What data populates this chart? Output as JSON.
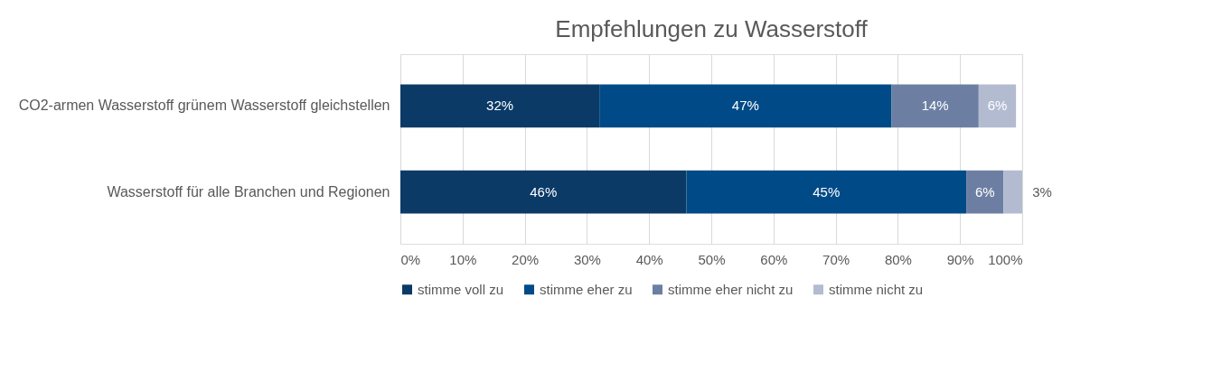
{
  "chart_data": {
    "type": "bar",
    "orientation": "horizontal",
    "stacked": true,
    "title": "Empfehlungen zu Wasserstoff",
    "categories": [
      "CO2-armen Wasserstoff grünem Wasserstoff gleichstellen",
      "Wasserstoff für alle Branchen und Regionen"
    ],
    "series": [
      {
        "name": "stimme voll zu",
        "color": "#0b3a66",
        "values": [
          32,
          46
        ],
        "value_labels": [
          "32%",
          "46%"
        ]
      },
      {
        "name": "stimme eher zu",
        "color": "#004b87",
        "values": [
          47,
          45
        ],
        "value_labels": [
          "47%",
          "45%"
        ]
      },
      {
        "name": "stimme eher nicht zu",
        "color": "#6c7fa3",
        "values": [
          14,
          6
        ],
        "value_labels": [
          "14%",
          "6%"
        ]
      },
      {
        "name": "stimme nicht zu",
        "color": "#b3bbd0",
        "values": [
          6,
          3
        ],
        "value_labels": [
          "6%",
          "3%"
        ]
      }
    ],
    "xlim": [
      0,
      100
    ],
    "xticks": [
      {
        "value": 0,
        "label": "0%"
      },
      {
        "value": 10,
        "label": "10%"
      },
      {
        "value": 20,
        "label": "20%"
      },
      {
        "value": 30,
        "label": "30%"
      },
      {
        "value": 40,
        "label": "40%"
      },
      {
        "value": 50,
        "label": "50%"
      },
      {
        "value": 60,
        "label": "60%"
      },
      {
        "value": 70,
        "label": "70%"
      },
      {
        "value": 80,
        "label": "80%"
      },
      {
        "value": 90,
        "label": "90%"
      },
      {
        "value": 100,
        "label": "100%"
      }
    ],
    "grid": "x",
    "legend": "bottom"
  }
}
